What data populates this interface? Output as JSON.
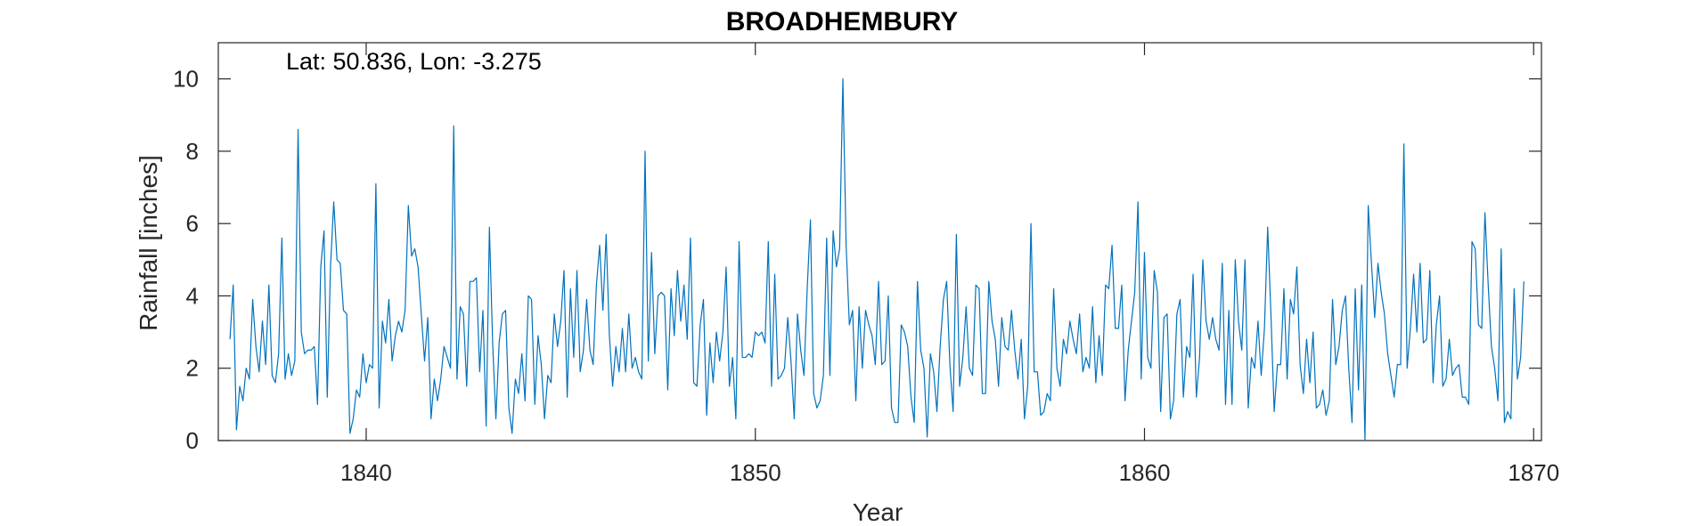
{
  "chart_data": {
    "type": "line",
    "title": "BROADHEMBURY",
    "xlabel": "Year",
    "ylabel": "Rainfall [inches]",
    "annotation": "Lat: 50.836, Lon: -3.275",
    "xlim": [
      1836.2,
      1870.2
    ],
    "ylim": [
      0,
      11
    ],
    "xticks": [
      1840,
      1850,
      1860,
      1870
    ],
    "yticks": [
      0,
      2,
      4,
      6,
      8,
      10
    ],
    "grid": false,
    "line_color": "#0072BD",
    "series": [
      {
        "x_start": 1836.5,
        "x_step": 0.08333,
        "values": [
          2.8,
          4.3,
          0.3,
          1.5,
          1.1,
          2.0,
          1.7,
          3.9,
          2.6,
          1.9,
          3.3,
          2.1,
          4.3,
          1.8,
          1.6,
          2.4,
          5.6,
          1.7,
          2.4,
          1.8,
          2.2,
          8.6,
          3.0,
          2.4,
          2.5,
          2.5,
          2.6,
          1.0,
          4.8,
          5.8,
          1.2,
          4.8,
          6.6,
          5.0,
          4.9,
          3.6,
          3.5,
          0.2,
          0.6,
          1.4,
          1.2,
          2.4,
          1.6,
          2.1,
          2.0,
          7.1,
          0.9,
          3.3,
          2.7,
          3.9,
          2.2,
          2.9,
          3.3,
          3.0,
          3.6,
          6.5,
          5.1,
          5.3,
          4.8,
          3.5,
          2.2,
          3.4,
          0.6,
          1.7,
          1.1,
          1.7,
          2.6,
          2.3,
          2.0,
          8.7,
          1.7,
          3.7,
          3.5,
          1.5,
          4.4,
          4.4,
          4.5,
          1.9,
          3.6,
          0.4,
          5.9,
          2.7,
          0.6,
          2.7,
          3.5,
          3.6,
          0.9,
          0.2,
          1.7,
          1.3,
          2.4,
          1.1,
          4.0,
          3.9,
          1.0,
          2.9,
          2.1,
          0.6,
          1.8,
          1.6,
          3.5,
          2.6,
          3.3,
          4.7,
          1.2,
          4.2,
          2.3,
          4.7,
          1.9,
          2.5,
          3.9,
          2.5,
          2.1,
          4.3,
          5.4,
          3.6,
          5.7,
          2.9,
          1.5,
          2.6,
          1.9,
          3.1,
          1.9,
          3.5,
          2.0,
          2.3,
          1.9,
          1.7,
          8.0,
          2.2,
          5.2,
          2.4,
          4.0,
          4.1,
          4.0,
          1.4,
          4.2,
          2.9,
          4.7,
          3.3,
          4.3,
          2.8,
          5.6,
          1.6,
          1.5,
          3.2,
          3.9,
          0.7,
          2.7,
          1.6,
          3.0,
          2.2,
          3.0,
          4.8,
          1.5,
          2.3,
          0.6,
          5.5,
          2.3,
          2.3,
          2.4,
          2.3,
          3.0,
          2.9,
          3.0,
          2.7,
          5.5,
          1.5,
          4.6,
          1.7,
          1.8,
          2.0,
          3.4,
          2.2,
          0.6,
          3.5,
          2.5,
          1.8,
          4.2,
          6.1,
          1.3,
          0.9,
          1.1,
          1.8,
          5.6,
          1.8,
          5.8,
          4.8,
          5.3,
          10.0,
          5.4,
          3.2,
          3.6,
          1.1,
          3.7,
          2.0,
          3.6,
          3.2,
          2.9,
          2.1,
          4.4,
          2.1,
          2.2,
          4.0,
          0.9,
          0.5,
          0.5,
          3.2,
          3.0,
          2.6,
          1.2,
          0.5,
          4.4,
          2.5,
          2.0,
          0.1,
          2.4,
          1.9,
          0.8,
          2.6,
          3.9,
          4.4,
          2.1,
          0.8,
          5.7,
          1.5,
          2.3,
          3.7,
          2.0,
          1.8,
          4.3,
          4.2,
          1.3,
          1.3,
          4.4,
          3.3,
          2.8,
          1.5,
          3.4,
          2.6,
          2.5,
          3.6,
          2.5,
          1.7,
          2.8,
          0.6,
          1.5,
          6.0,
          1.9,
          1.9,
          0.7,
          0.8,
          1.3,
          1.1,
          4.2,
          2.0,
          1.5,
          2.8,
          2.4,
          3.3,
          2.8,
          2.4,
          3.5,
          1.9,
          2.3,
          2.0,
          3.7,
          1.6,
          2.9,
          1.8,
          4.3,
          4.2,
          5.4,
          3.1,
          3.1,
          4.3,
          1.1,
          2.5,
          3.3,
          4.1,
          6.6,
          1.7,
          5.2,
          2.3,
          2.0,
          4.7,
          4.1,
          0.8,
          3.4,
          3.5,
          0.6,
          1.1,
          3.5,
          3.9,
          1.2,
          2.6,
          2.3,
          4.6,
          1.2,
          2.3,
          5.0,
          3.3,
          2.8,
          3.4,
          2.8,
          2.5,
          4.9,
          1.0,
          3.6,
          1.0,
          5.0,
          3.3,
          2.5,
          5.0,
          0.9,
          2.3,
          2.0,
          3.3,
          1.8,
          3.1,
          5.9,
          3.5,
          0.8,
          2.1,
          2.1,
          4.2,
          1.7,
          3.9,
          3.5,
          4.8,
          2.1,
          1.3,
          2.8,
          1.6,
          3.0,
          0.9,
          1.0,
          1.4,
          0.7,
          1.1,
          3.9,
          2.1,
          2.6,
          3.6,
          4.0,
          2.0,
          0.5,
          4.2,
          1.4,
          4.3,
          0.0,
          6.5,
          4.9,
          3.4,
          4.9,
          4.1,
          3.5,
          2.4,
          1.8,
          1.2,
          2.1,
          2.1,
          8.2,
          2.0,
          3.1,
          4.6,
          3.0,
          4.9,
          2.7,
          2.8,
          4.7,
          1.6,
          3.2,
          4.0,
          1.5,
          1.7,
          2.8,
          1.8,
          2.0,
          2.1,
          1.2,
          1.2,
          1.0,
          5.5,
          5.3,
          3.2,
          3.1,
          6.3,
          4.3,
          2.6,
          2.0,
          1.1,
          5.3,
          0.5,
          0.8,
          0.6,
          4.2,
          1.7,
          2.3,
          4.4
        ]
      }
    ]
  }
}
